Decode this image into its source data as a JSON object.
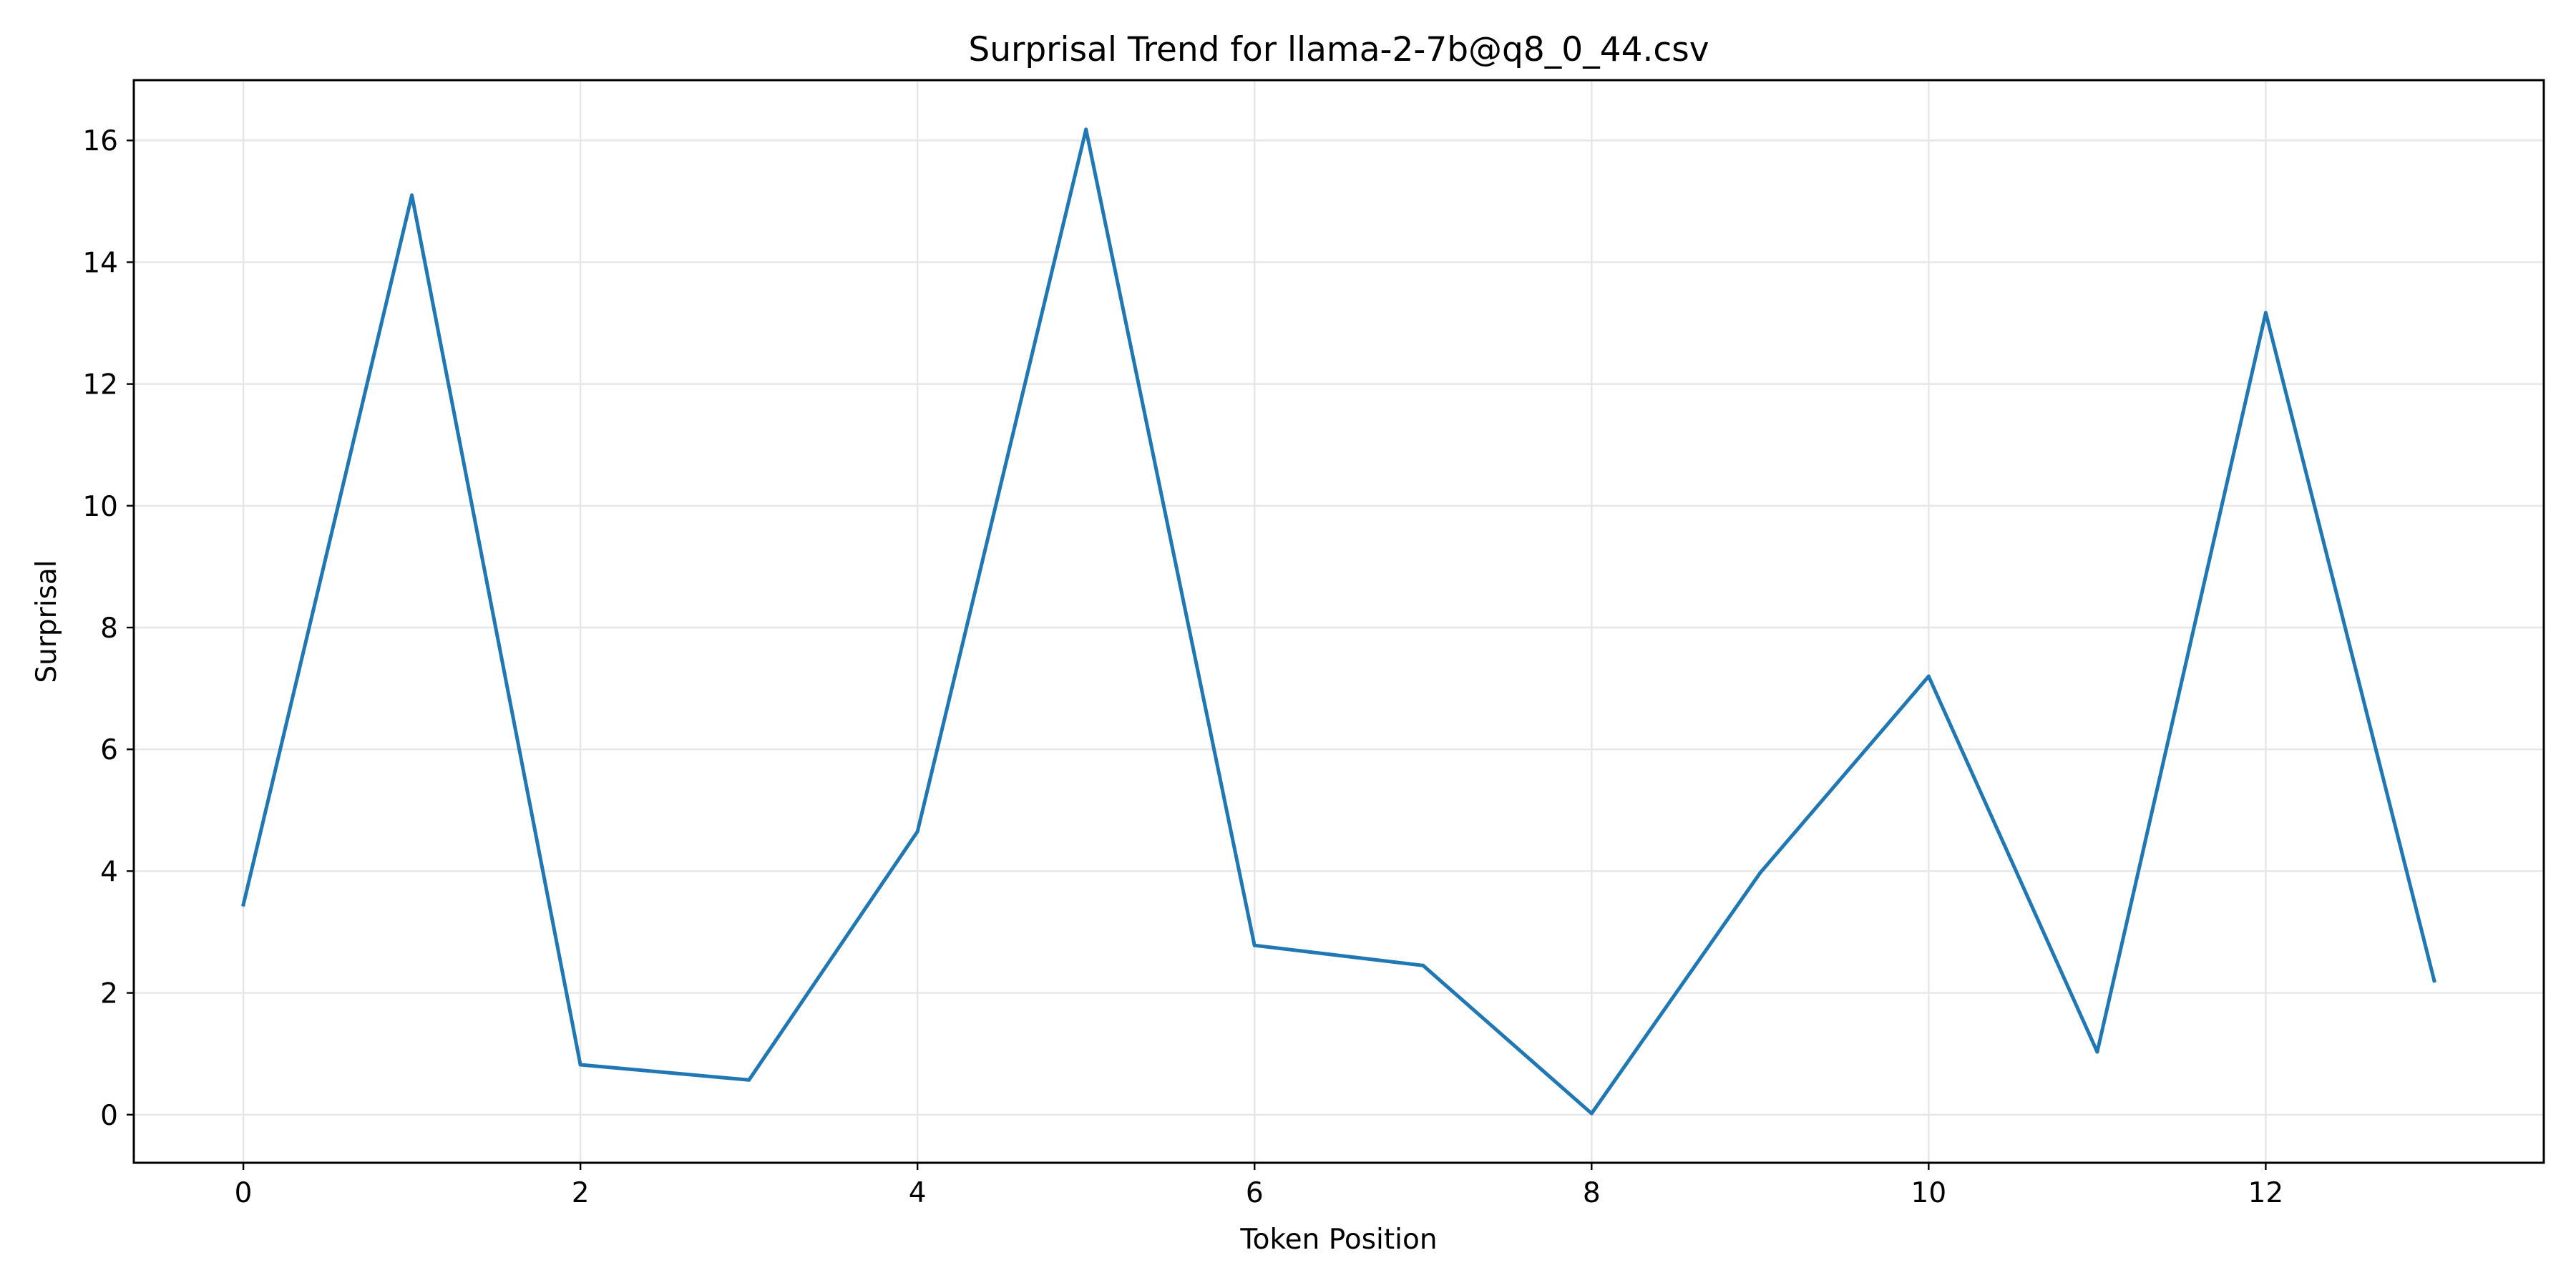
{
  "chart_data": {
    "type": "line",
    "title": "Surprisal Trend for llama-2-7b@q8_0_44.csv",
    "xlabel": "Token Position",
    "ylabel": "Surprisal",
    "x": [
      0,
      1,
      2,
      3,
      4,
      5,
      6,
      7,
      8,
      9,
      10,
      11,
      12,
      13
    ],
    "series": [
      {
        "values": [
          3.45,
          15.1,
          0.82,
          0.57,
          4.65,
          16.18,
          2.78,
          2.45,
          0.02,
          3.97,
          7.2,
          1.03,
          13.17,
          2.2
        ]
      }
    ],
    "xlim": [
      -0.65,
      13.65
    ],
    "ylim": [
      -0.79,
      16.99
    ],
    "xticks": [
      0,
      2,
      4,
      6,
      8,
      10,
      12
    ],
    "yticks": [
      0,
      2,
      4,
      6,
      8,
      10,
      12,
      14,
      16
    ],
    "grid": true,
    "legend": "none",
    "colors": {
      "line": "#1f77b4",
      "grid": "#e6e6e6",
      "axis": "#000000"
    }
  }
}
